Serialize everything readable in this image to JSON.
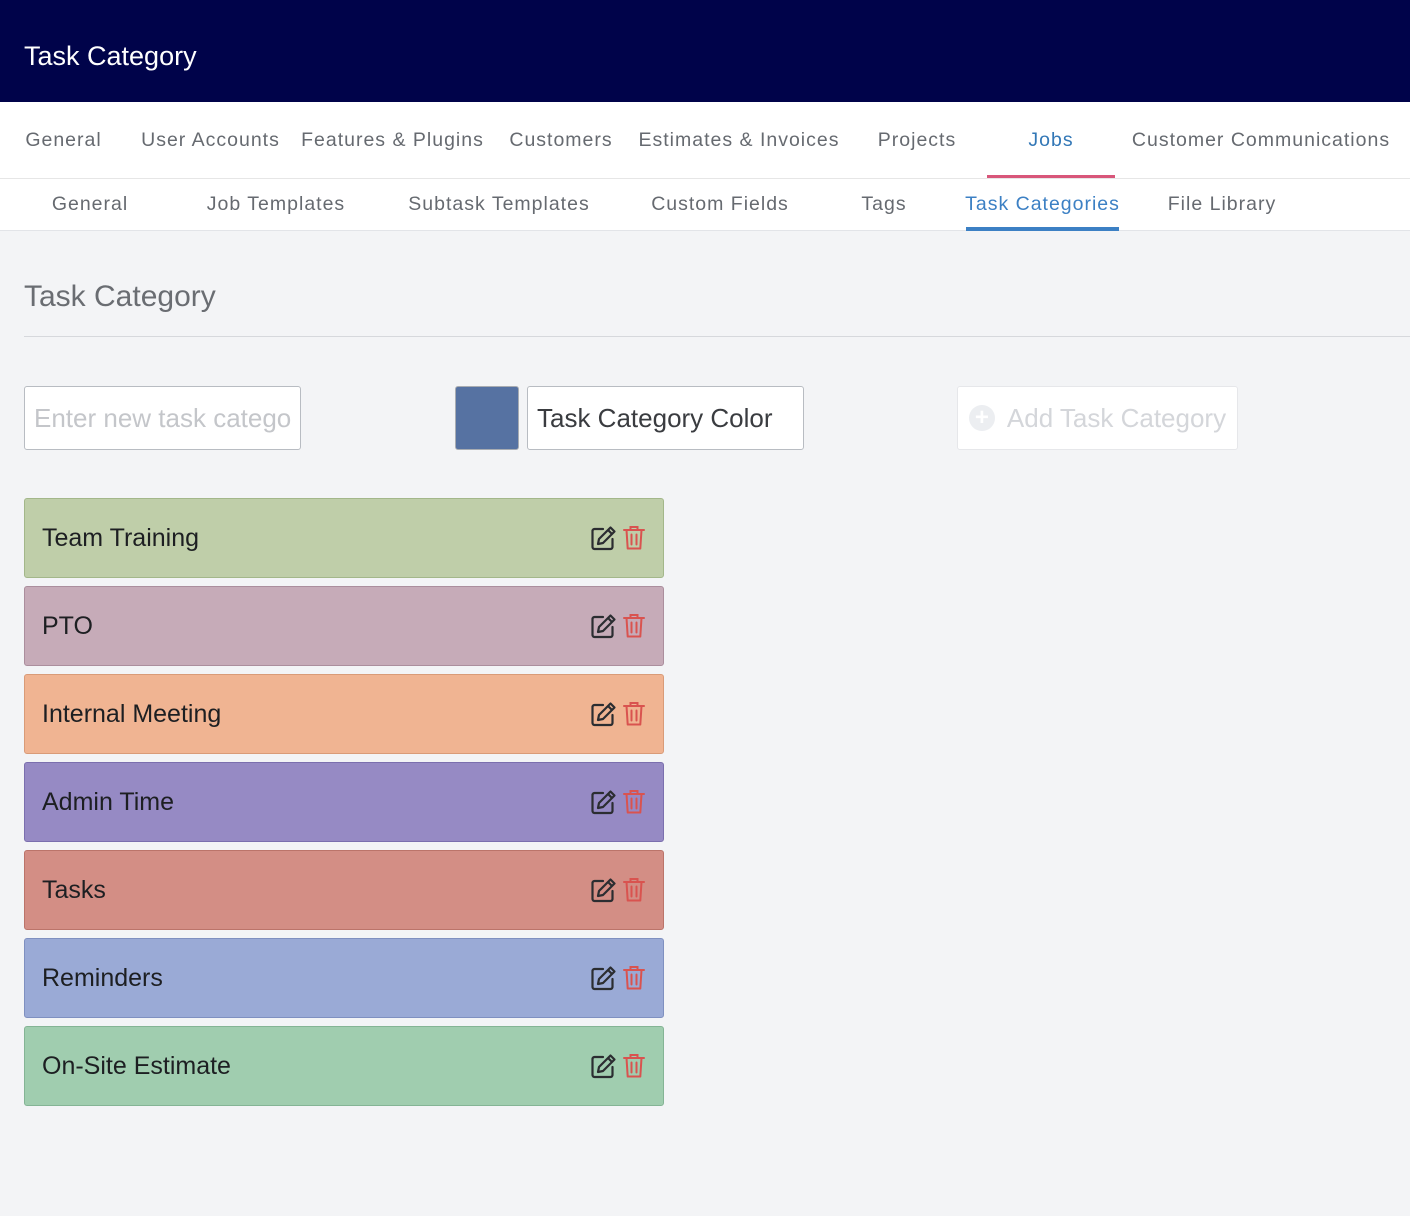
{
  "header": {
    "title": "Task Category"
  },
  "main_nav": [
    {
      "label": "General",
      "active": false
    },
    {
      "label": "User Accounts",
      "active": false
    },
    {
      "label": "Features & Plugins",
      "active": false
    },
    {
      "label": "Customers",
      "active": false
    },
    {
      "label": "Estimates & Invoices",
      "active": false
    },
    {
      "label": "Projects",
      "active": false
    },
    {
      "label": "Jobs",
      "active": true
    },
    {
      "label": "Customer Communications",
      "active": false
    }
  ],
  "sub_nav": [
    {
      "label": "General",
      "active": false
    },
    {
      "label": "Job Templates",
      "active": false
    },
    {
      "label": "Subtask Templates",
      "active": false
    },
    {
      "label": "Custom Fields",
      "active": false
    },
    {
      "label": "Tags",
      "active": false
    },
    {
      "label": "Task Categories",
      "active": true
    },
    {
      "label": "File Library",
      "active": false
    }
  ],
  "section": {
    "title": "Task Category"
  },
  "form": {
    "name_placeholder": "Enter new task category",
    "name_value": "",
    "swatch_color": "#5672a2",
    "color_value": "Task Category Color",
    "add_label": "Add Task Category",
    "add_icon": "plus-circle-icon",
    "add_disabled": true
  },
  "categories": [
    {
      "name": "Team Training",
      "color": "#bfcea9",
      "border": "#a3b78a"
    },
    {
      "name": "PTO",
      "color": "#c6abb8",
      "border": "#ab8e9d"
    },
    {
      "name": "Internal Meeting",
      "color": "#f0b492",
      "border": "#d99b78"
    },
    {
      "name": "Admin Time",
      "color": "#968ac4",
      "border": "#7b6fae"
    },
    {
      "name": "Tasks",
      "color": "#d38e85",
      "border": "#bb746a"
    },
    {
      "name": "Reminders",
      "color": "#9aaad6",
      "border": "#7f90c0"
    },
    {
      "name": "On-Site Estimate",
      "color": "#a0cdaf",
      "border": "#84b495"
    }
  ],
  "icons": {
    "edit": "edit-icon",
    "delete": "trash-icon",
    "edit_color": "#2b2d31",
    "delete_color": "#d9534f"
  }
}
